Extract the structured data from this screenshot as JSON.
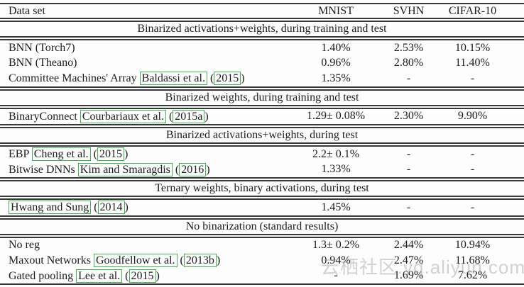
{
  "header": {
    "dataset_label": "Data set",
    "columns": [
      "MNIST",
      "SVHN",
      "CIFAR-10"
    ]
  },
  "sections": [
    {
      "title": "Binarized activations+weights, during training and test",
      "rows": [
        {
          "prefix": "BNN (Torch7)",
          "cite": null,
          "year": null,
          "values": [
            "1.40%",
            "2.53%",
            "10.15%"
          ]
        },
        {
          "prefix": "BNN (Theano)",
          "cite": null,
          "year": null,
          "values": [
            "0.96%",
            "2.80%",
            "11.40%"
          ]
        },
        {
          "prefix": "Committee Machines' Array",
          "cite": "Baldassi et al.",
          "year": "2015",
          "values": [
            "1.35%",
            "-",
            "-"
          ]
        }
      ]
    },
    {
      "title": "Binarized weights, during training and test",
      "rows": [
        {
          "prefix": "BinaryConnect",
          "cite": "Courbariaux et al.",
          "year": "2015a",
          "values": [
            "1.29± 0.08%",
            "2.30%",
            "9.90%"
          ]
        }
      ]
    },
    {
      "title": "Binarized activations+weights, during test",
      "rows": [
        {
          "prefix": "EBP",
          "cite": "Cheng et al.",
          "year": "2015",
          "values": [
            "2.2± 0.1%",
            "-",
            "-"
          ]
        },
        {
          "prefix": "Bitwise DNNs",
          "cite": "Kim and Smaragdis",
          "year": "2016",
          "values": [
            "1.33%",
            "-",
            "-"
          ]
        }
      ]
    },
    {
      "title": "Ternary weights, binary activations, during test",
      "rows": [
        {
          "prefix": "",
          "cite": "Hwang and Sung",
          "year": "2014",
          "values": [
            "1.45%",
            "-",
            "-"
          ]
        }
      ]
    },
    {
      "title": "No binarization (standard results)",
      "rows": [
        {
          "prefix": "No reg",
          "cite": null,
          "year": null,
          "values": [
            "1.3± 0.2%",
            "2.44%",
            "10.94%"
          ]
        },
        {
          "prefix": "Maxout Networks",
          "cite": "Goodfellow et al.",
          "year": "2013b",
          "values": [
            "0.94%",
            "2.47%",
            "11.68%"
          ]
        },
        {
          "prefix": "Gated pooling",
          "cite": "Lee et al.",
          "year": "2015",
          "values": [
            "-",
            "1.69%",
            "7.62%"
          ]
        }
      ]
    }
  ],
  "watermark": "云栖社区.yq.aliyun.com",
  "colors": {
    "citation_box": "#3fb24c",
    "rule": "#383838",
    "text": "#1c1c1c",
    "background": "#fdfdfd",
    "watermark": "#9b9b9b"
  }
}
